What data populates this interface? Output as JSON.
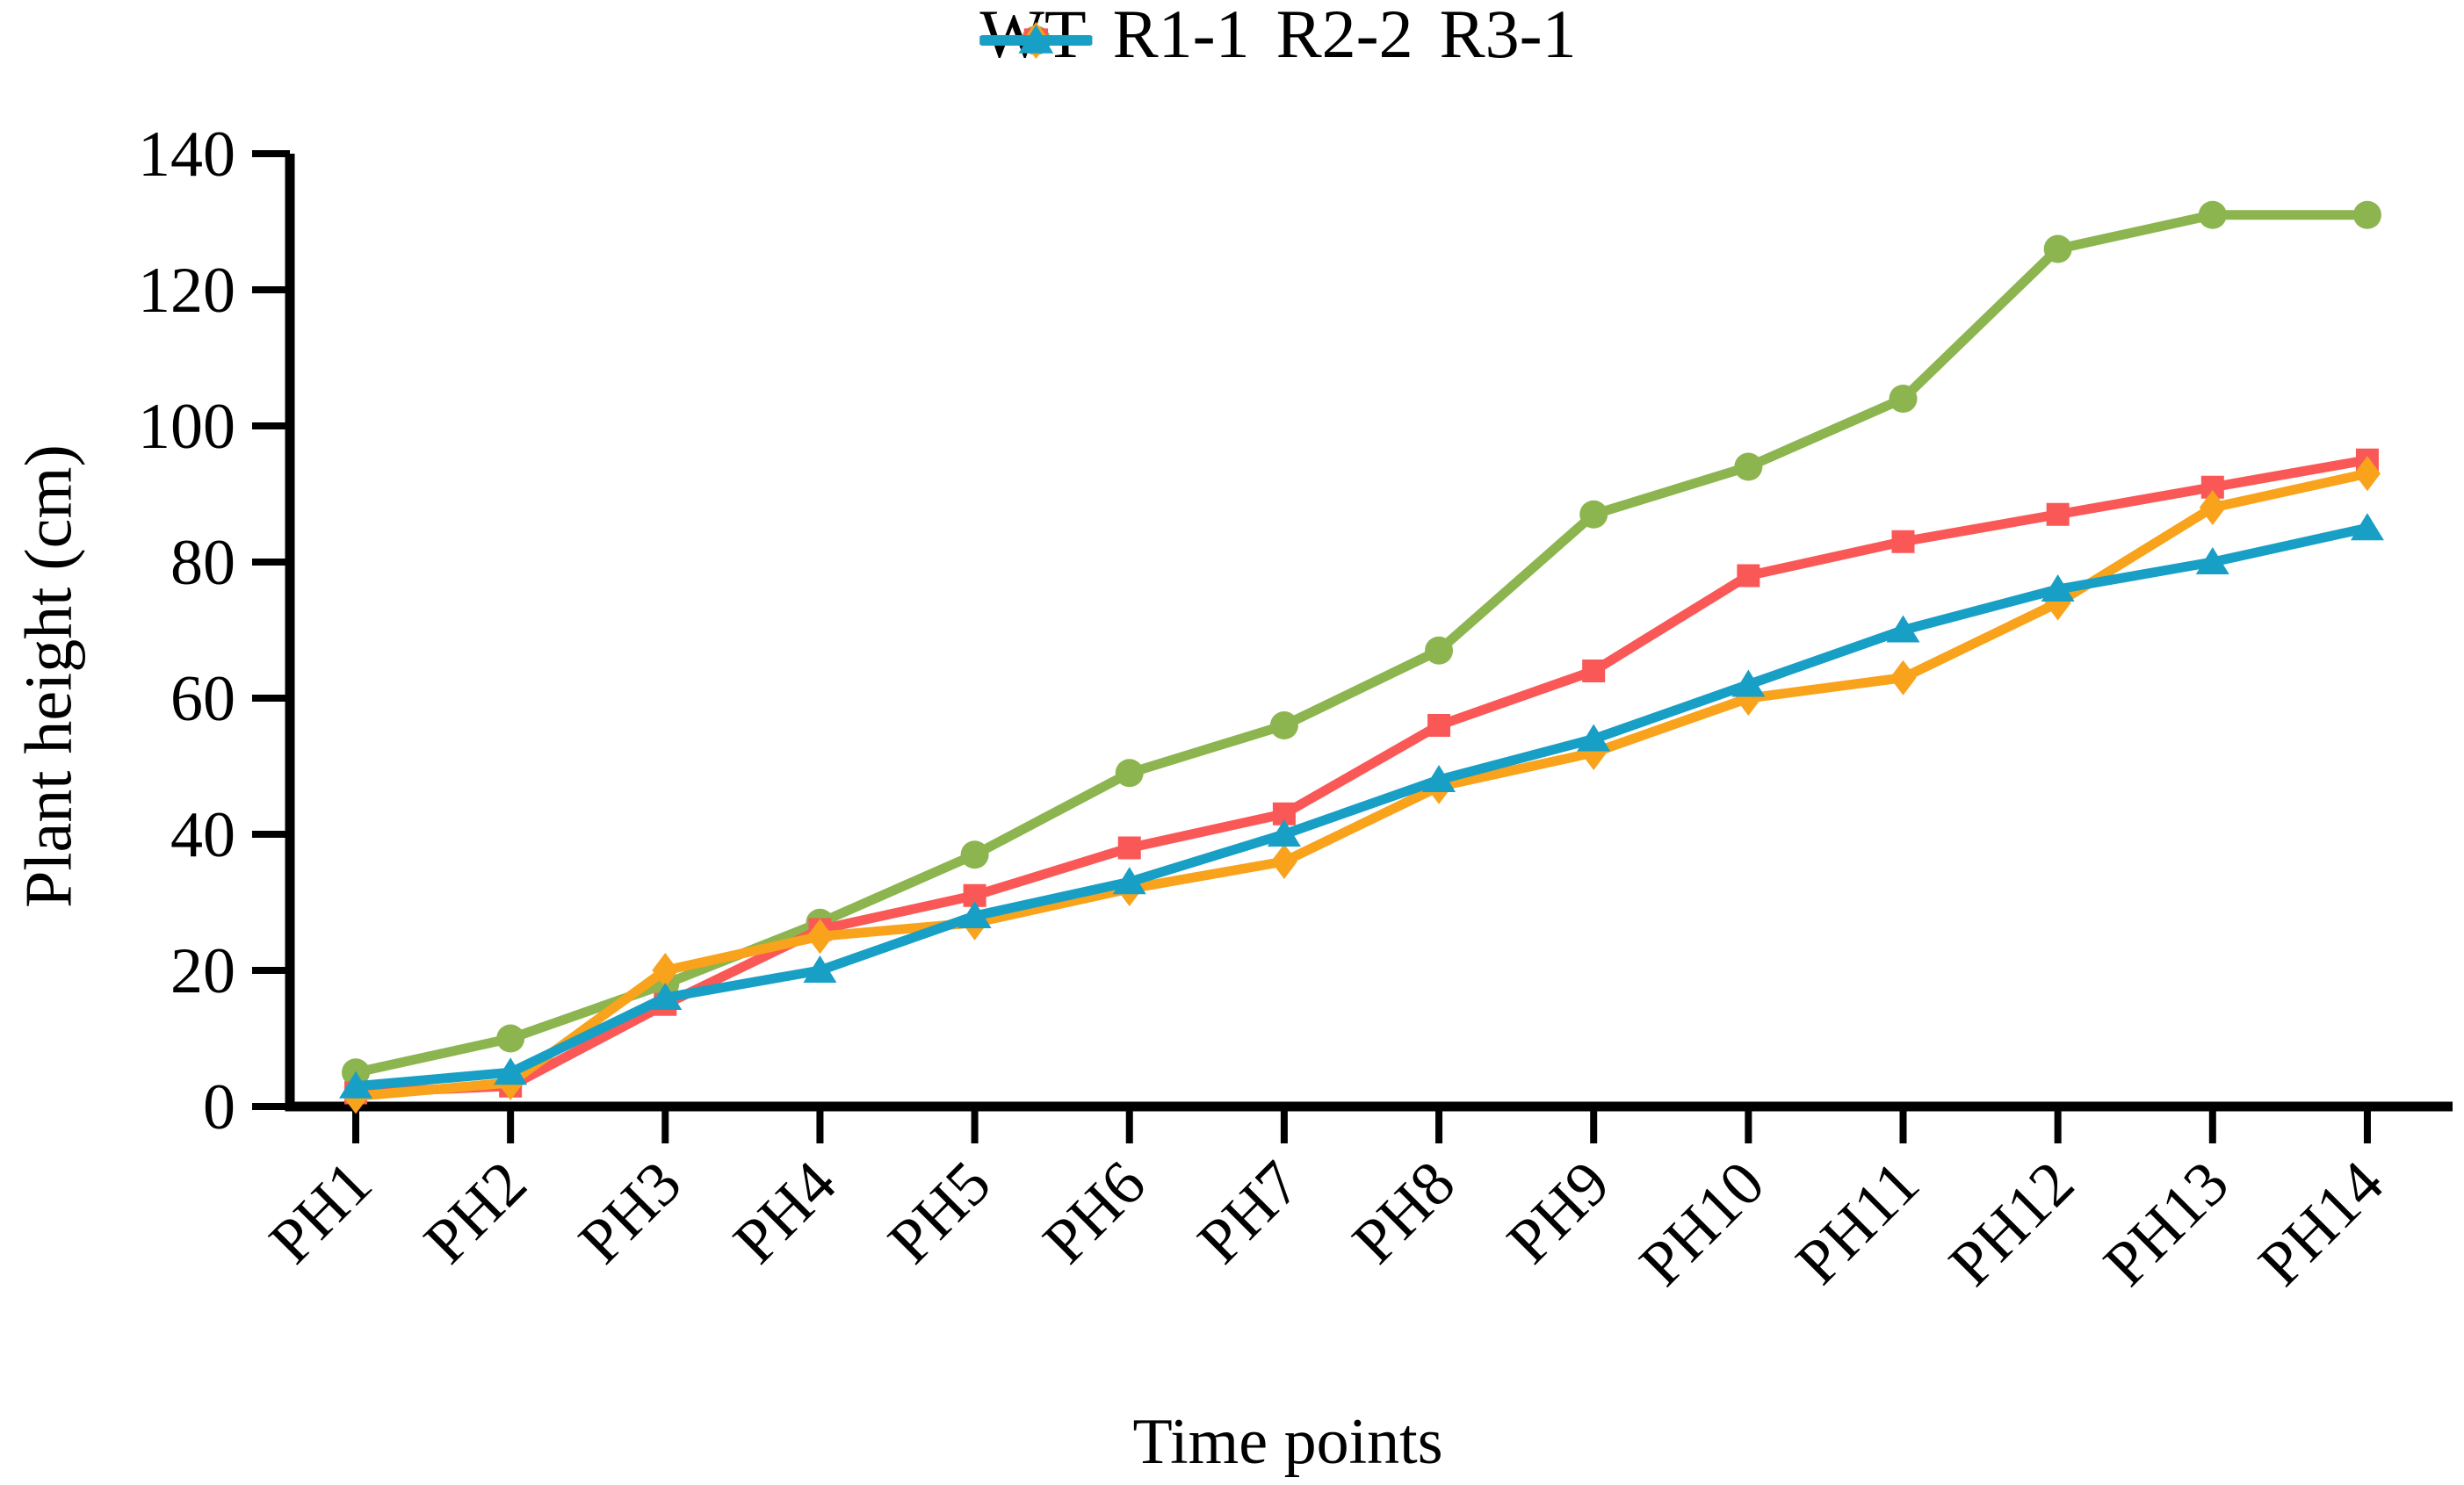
{
  "page": {
    "background": "#ffffff"
  },
  "chart_data": {
    "type": "line",
    "title": "",
    "xlabel": "Time points",
    "ylabel": "Plant height (cm)",
    "categories": [
      "PH1",
      "PH2",
      "PH3",
      "PH4",
      "PH5",
      "PH6",
      "PH7",
      "PH8",
      "PH9",
      "PH10",
      "PH11",
      "PH12",
      "PH13",
      "PH14"
    ],
    "ylim": [
      0,
      140
    ],
    "yticks": [
      0,
      20,
      40,
      60,
      80,
      100,
      120,
      140
    ],
    "grid": false,
    "legend_position": "top-center",
    "axis_color": "#000000",
    "series": [
      {
        "name": "WT",
        "color": "#8CB54F",
        "marker": "circle",
        "values": [
          5,
          10,
          18,
          27,
          37,
          49,
          56,
          67,
          87,
          94,
          104,
          126,
          131,
          131
        ]
      },
      {
        "name": "R1-1",
        "color": "#FA5857",
        "marker": "square",
        "values": [
          2,
          3,
          15,
          26,
          31,
          38,
          43,
          56,
          64,
          78,
          83,
          87,
          91,
          95
        ]
      },
      {
        "name": "R2-2",
        "color": "#F9A21B",
        "marker": "diamond",
        "values": [
          1.5,
          3.5,
          20,
          25,
          27,
          32,
          36,
          47,
          52,
          60,
          63,
          74,
          88,
          93
        ]
      },
      {
        "name": "R3-1",
        "color": "#189FC6",
        "marker": "triangle",
        "values": [
          3,
          5,
          16,
          20,
          28,
          33,
          40,
          48,
          54,
          62,
          70,
          76,
          80,
          85
        ]
      }
    ]
  }
}
